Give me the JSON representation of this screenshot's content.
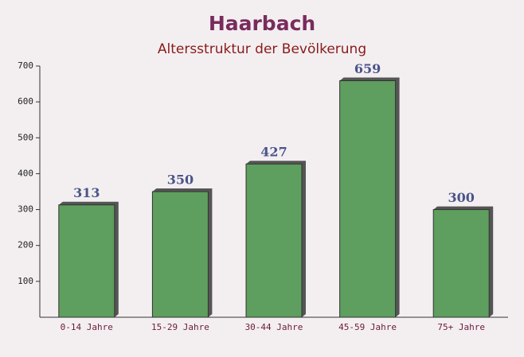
{
  "chart_data": {
    "type": "bar",
    "title": "Haarbach",
    "subtitle": "Altersstruktur der Bevölkerung",
    "categories": [
      "0-14 Jahre",
      "15-29 Jahre",
      "30-44 Jahre",
      "45-59 Jahre",
      "75+ Jahre"
    ],
    "values": [
      313,
      350,
      427,
      659,
      300
    ],
    "color": "#5e9e5e",
    "ylim": [
      0,
      700
    ],
    "yticks": [
      100,
      200,
      300,
      400,
      500,
      600,
      700
    ],
    "grid": false
  }
}
